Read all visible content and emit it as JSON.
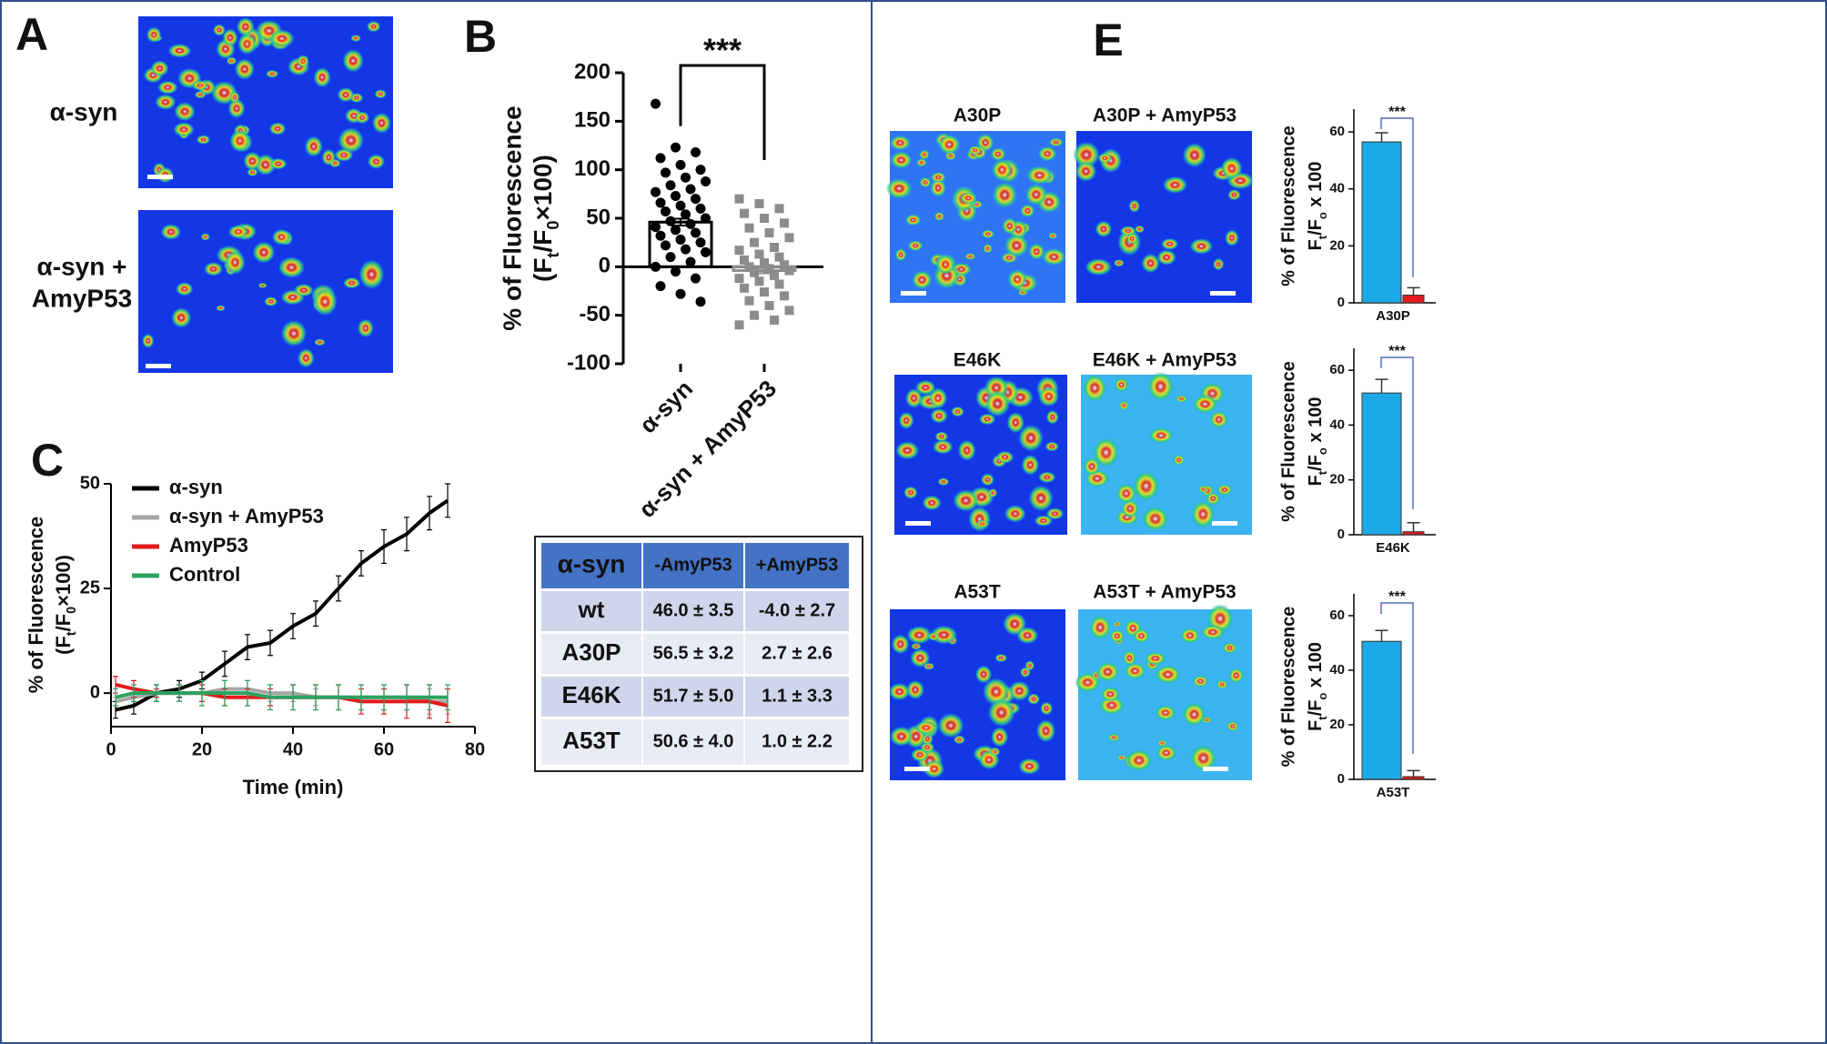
{
  "panels": [
    "A",
    "B",
    "C",
    "E"
  ],
  "panel_a": {
    "labels": [
      "α-syn",
      "α-syn +",
      "AmyP53"
    ]
  },
  "panel_e": {
    "image_titles": [
      [
        "A30P",
        "A30P + AmyP53"
      ],
      [
        "E46K",
        "E46K + AmyP53"
      ],
      [
        "A53T",
        "A53T + AmyP53"
      ]
    ]
  },
  "chart_data": [
    {
      "type": "dotplot",
      "categories": [
        "α-syn",
        "α-syn + AmyP53"
      ],
      "values": [
        46.0,
        -4.0
      ],
      "errors": [
        3.5,
        2.7
      ],
      "colors": [
        "#000000",
        "#8c8c8c"
      ],
      "points": [
        [
          168,
          123,
          118,
          112,
          105,
          100,
          97,
          92,
          88,
          84,
          80,
          77,
          73,
          70,
          66,
          63,
          60,
          57,
          54,
          50,
          47,
          44,
          41,
          38,
          35,
          32,
          28,
          25,
          22,
          18,
          15,
          10,
          5,
          0,
          -5,
          -12,
          -20,
          -28,
          -36
        ],
        [
          70,
          65,
          60,
          55,
          50,
          45,
          40,
          35,
          30,
          25,
          20,
          17,
          13,
          10,
          7,
          4,
          2,
          0,
          -2,
          -4,
          -6,
          -9,
          -12,
          -15,
          -18,
          -22,
          -26,
          -30,
          -35,
          -40,
          -45,
          -50,
          -55,
          -60
        ]
      ],
      "ylim": [
        -100,
        200
      ],
      "yticks": [
        -100,
        -50,
        0,
        50,
        100,
        150,
        200
      ],
      "ylabel": "% of Fluorescence",
      "ylabel_formula": [
        "(F",
        "t",
        "/F",
        "0",
        "×100)"
      ],
      "annotation": "***"
    },
    {
      "type": "line",
      "x": [
        1,
        5,
        10,
        15,
        20,
        25,
        30,
        35,
        40,
        45,
        50,
        55,
        60,
        65,
        70,
        74
      ],
      "series": [
        {
          "name": "α-syn",
          "color": "#000000",
          "values": [
            -4,
            -3,
            0,
            1,
            3,
            7,
            11,
            12,
            16,
            19,
            25,
            31,
            35,
            38,
            43,
            46
          ],
          "errors": [
            2,
            2,
            2,
            2,
            2,
            3,
            3,
            3,
            3,
            3,
            3,
            3,
            4,
            4,
            4,
            4
          ]
        },
        {
          "name": "α-syn + AmyP53",
          "color": "#a6a6a6",
          "values": [
            -2,
            -1,
            0,
            0,
            0,
            1,
            1,
            0,
            0,
            -1,
            -1,
            -1,
            -1,
            -1,
            -2,
            -2
          ],
          "errors": [
            1,
            1,
            1,
            2,
            2,
            2,
            2,
            2,
            2,
            2,
            3,
            3,
            3,
            3,
            3,
            3
          ]
        },
        {
          "name": "AmyP53",
          "color": "#e31a1c",
          "values": [
            2,
            1,
            0,
            0,
            0,
            -1,
            -1,
            -1,
            -1,
            -1,
            -1,
            -2,
            -2,
            -2,
            -2,
            -3
          ],
          "errors": [
            2,
            2,
            1,
            2,
            2,
            2,
            2,
            2,
            3,
            3,
            3,
            3,
            3,
            4,
            4,
            4
          ]
        },
        {
          "name": "Control",
          "color": "#2ca25f",
          "values": [
            -1,
            0,
            0,
            0,
            0,
            0,
            0,
            -1,
            -1,
            -1,
            -1,
            -1,
            -1,
            -1,
            -1,
            -1
          ],
          "errors": [
            2,
            2,
            2,
            2,
            3,
            3,
            3,
            3,
            3,
            3,
            3,
            3,
            3,
            3,
            3,
            3
          ]
        }
      ],
      "xlim": [
        0,
        80
      ],
      "xticks": [
        0,
        20,
        40,
        60,
        80
      ],
      "ylim": [
        -8,
        50
      ],
      "yticks": [
        0,
        25,
        50
      ],
      "xlabel": "Time (min)",
      "ylabel": "% of Fluorescence",
      "ylabel_formula": [
        "(F",
        "t",
        "/F",
        "0",
        "×100)"
      ]
    },
    {
      "type": "bar",
      "categories": [
        "A30P"
      ],
      "series": [
        {
          "color": "#1ca9e6",
          "values": [
            56.5
          ],
          "errors": [
            3.2
          ]
        },
        {
          "color": "#e41a1c",
          "values": [
            2.7
          ],
          "errors": [
            2.6
          ]
        }
      ],
      "ylim": [
        0,
        68
      ],
      "yticks": [
        0,
        20,
        40,
        60
      ],
      "annotation": "***",
      "ylabel": "% of Fluorescence",
      "ylabel_formula": [
        "F",
        "t",
        "/F",
        "o",
        " x 100"
      ]
    },
    {
      "type": "bar",
      "categories": [
        "E46K"
      ],
      "series": [
        {
          "color": "#1ca9e6",
          "values": [
            51.7
          ],
          "errors": [
            5.0
          ]
        },
        {
          "color": "#e41a1c",
          "values": [
            1.1
          ],
          "errors": [
            3.3
          ]
        }
      ],
      "ylim": [
        0,
        68
      ],
      "yticks": [
        0,
        20,
        40,
        60
      ],
      "annotation": "***",
      "ylabel": "% of Fluorescence",
      "ylabel_formula": [
        "F",
        "t",
        "/F",
        "o",
        " x 100"
      ]
    },
    {
      "type": "bar",
      "categories": [
        "A53T"
      ],
      "series": [
        {
          "color": "#1ca9e6",
          "values": [
            50.6
          ],
          "errors": [
            4.0
          ]
        },
        {
          "color": "#e41a1c",
          "values": [
            1.0
          ],
          "errors": [
            2.2
          ]
        }
      ],
      "ylim": [
        0,
        68
      ],
      "yticks": [
        0,
        20,
        40,
        60
      ],
      "annotation": "***",
      "ylabel": "% of Fluorescence",
      "ylabel_formula": [
        "F",
        "t",
        "/F",
        "o",
        " x 100"
      ]
    }
  ],
  "table": {
    "header": [
      "α-syn",
      "-AmyP53",
      "+AmyP53"
    ],
    "rows": [
      [
        "wt",
        "46.0 ± 3.5",
        "-4.0 ± 2.7"
      ],
      [
        "A30P",
        "56.5 ± 3.2",
        "2.7 ± 2.6"
      ],
      [
        "E46K",
        "51.7 ± 5.0",
        "1.1 ± 3.3"
      ],
      [
        "A53T",
        "50.6 ± 4.0",
        "1.0 ± 2.2"
      ]
    ]
  }
}
